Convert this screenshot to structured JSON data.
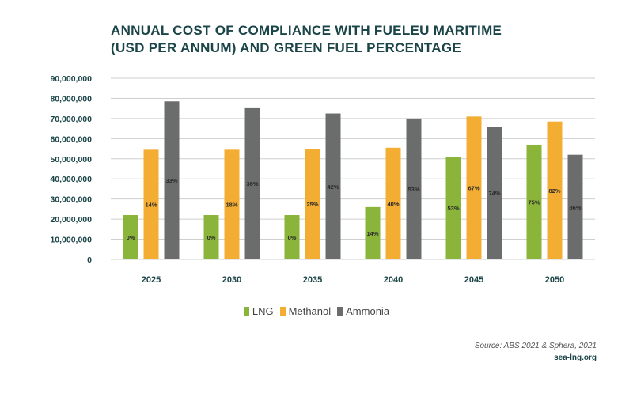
{
  "title_line1": "ANNUAL COST OF COMPLIANCE WITH FUELEU MARITIME",
  "title_line2": "(USD PER ANNUM) AND GREEN FUEL PERCENTAGE",
  "source": "Source: ABS 2021 & Sphera, 2021",
  "site": "sea-lng.org",
  "chart_data": {
    "type": "bar",
    "categories": [
      "2025",
      "2030",
      "2035",
      "2040",
      "2045",
      "2050"
    ],
    "ylim": [
      0,
      90000000
    ],
    "yticks": [
      "0",
      "10,000,000",
      "20,000,000",
      "30,000,000",
      "40,000,000",
      "50,000,000",
      "60,000,000",
      "70,000,000",
      "80,000,000",
      "90,000,000"
    ],
    "ytick_values": [
      0,
      10000000,
      20000000,
      30000000,
      40000000,
      50000000,
      60000000,
      70000000,
      80000000,
      90000000
    ],
    "grid": true,
    "legend_position": "bottom-center",
    "series": [
      {
        "name": "LNG",
        "color": "#8ab43a",
        "values": [
          22000000,
          22000000,
          22000000,
          26000000,
          51000000,
          57000000
        ],
        "labels": [
          "0%",
          "0%",
          "0%",
          "14%",
          "53%",
          "75%"
        ]
      },
      {
        "name": "Methanol",
        "color": "#f4ad33",
        "values": [
          54500000,
          54500000,
          55000000,
          55500000,
          71000000,
          68500000
        ],
        "labels": [
          "14%",
          "18%",
          "25%",
          "40%",
          "67%",
          "82%"
        ]
      },
      {
        "name": "Ammonia",
        "color": "#6b6d6c",
        "values": [
          78500000,
          75500000,
          72500000,
          70000000,
          66000000,
          52000000
        ],
        "labels": [
          "33%",
          "36%",
          "42%",
          "53%",
          "74%",
          "86%"
        ]
      }
    ]
  }
}
